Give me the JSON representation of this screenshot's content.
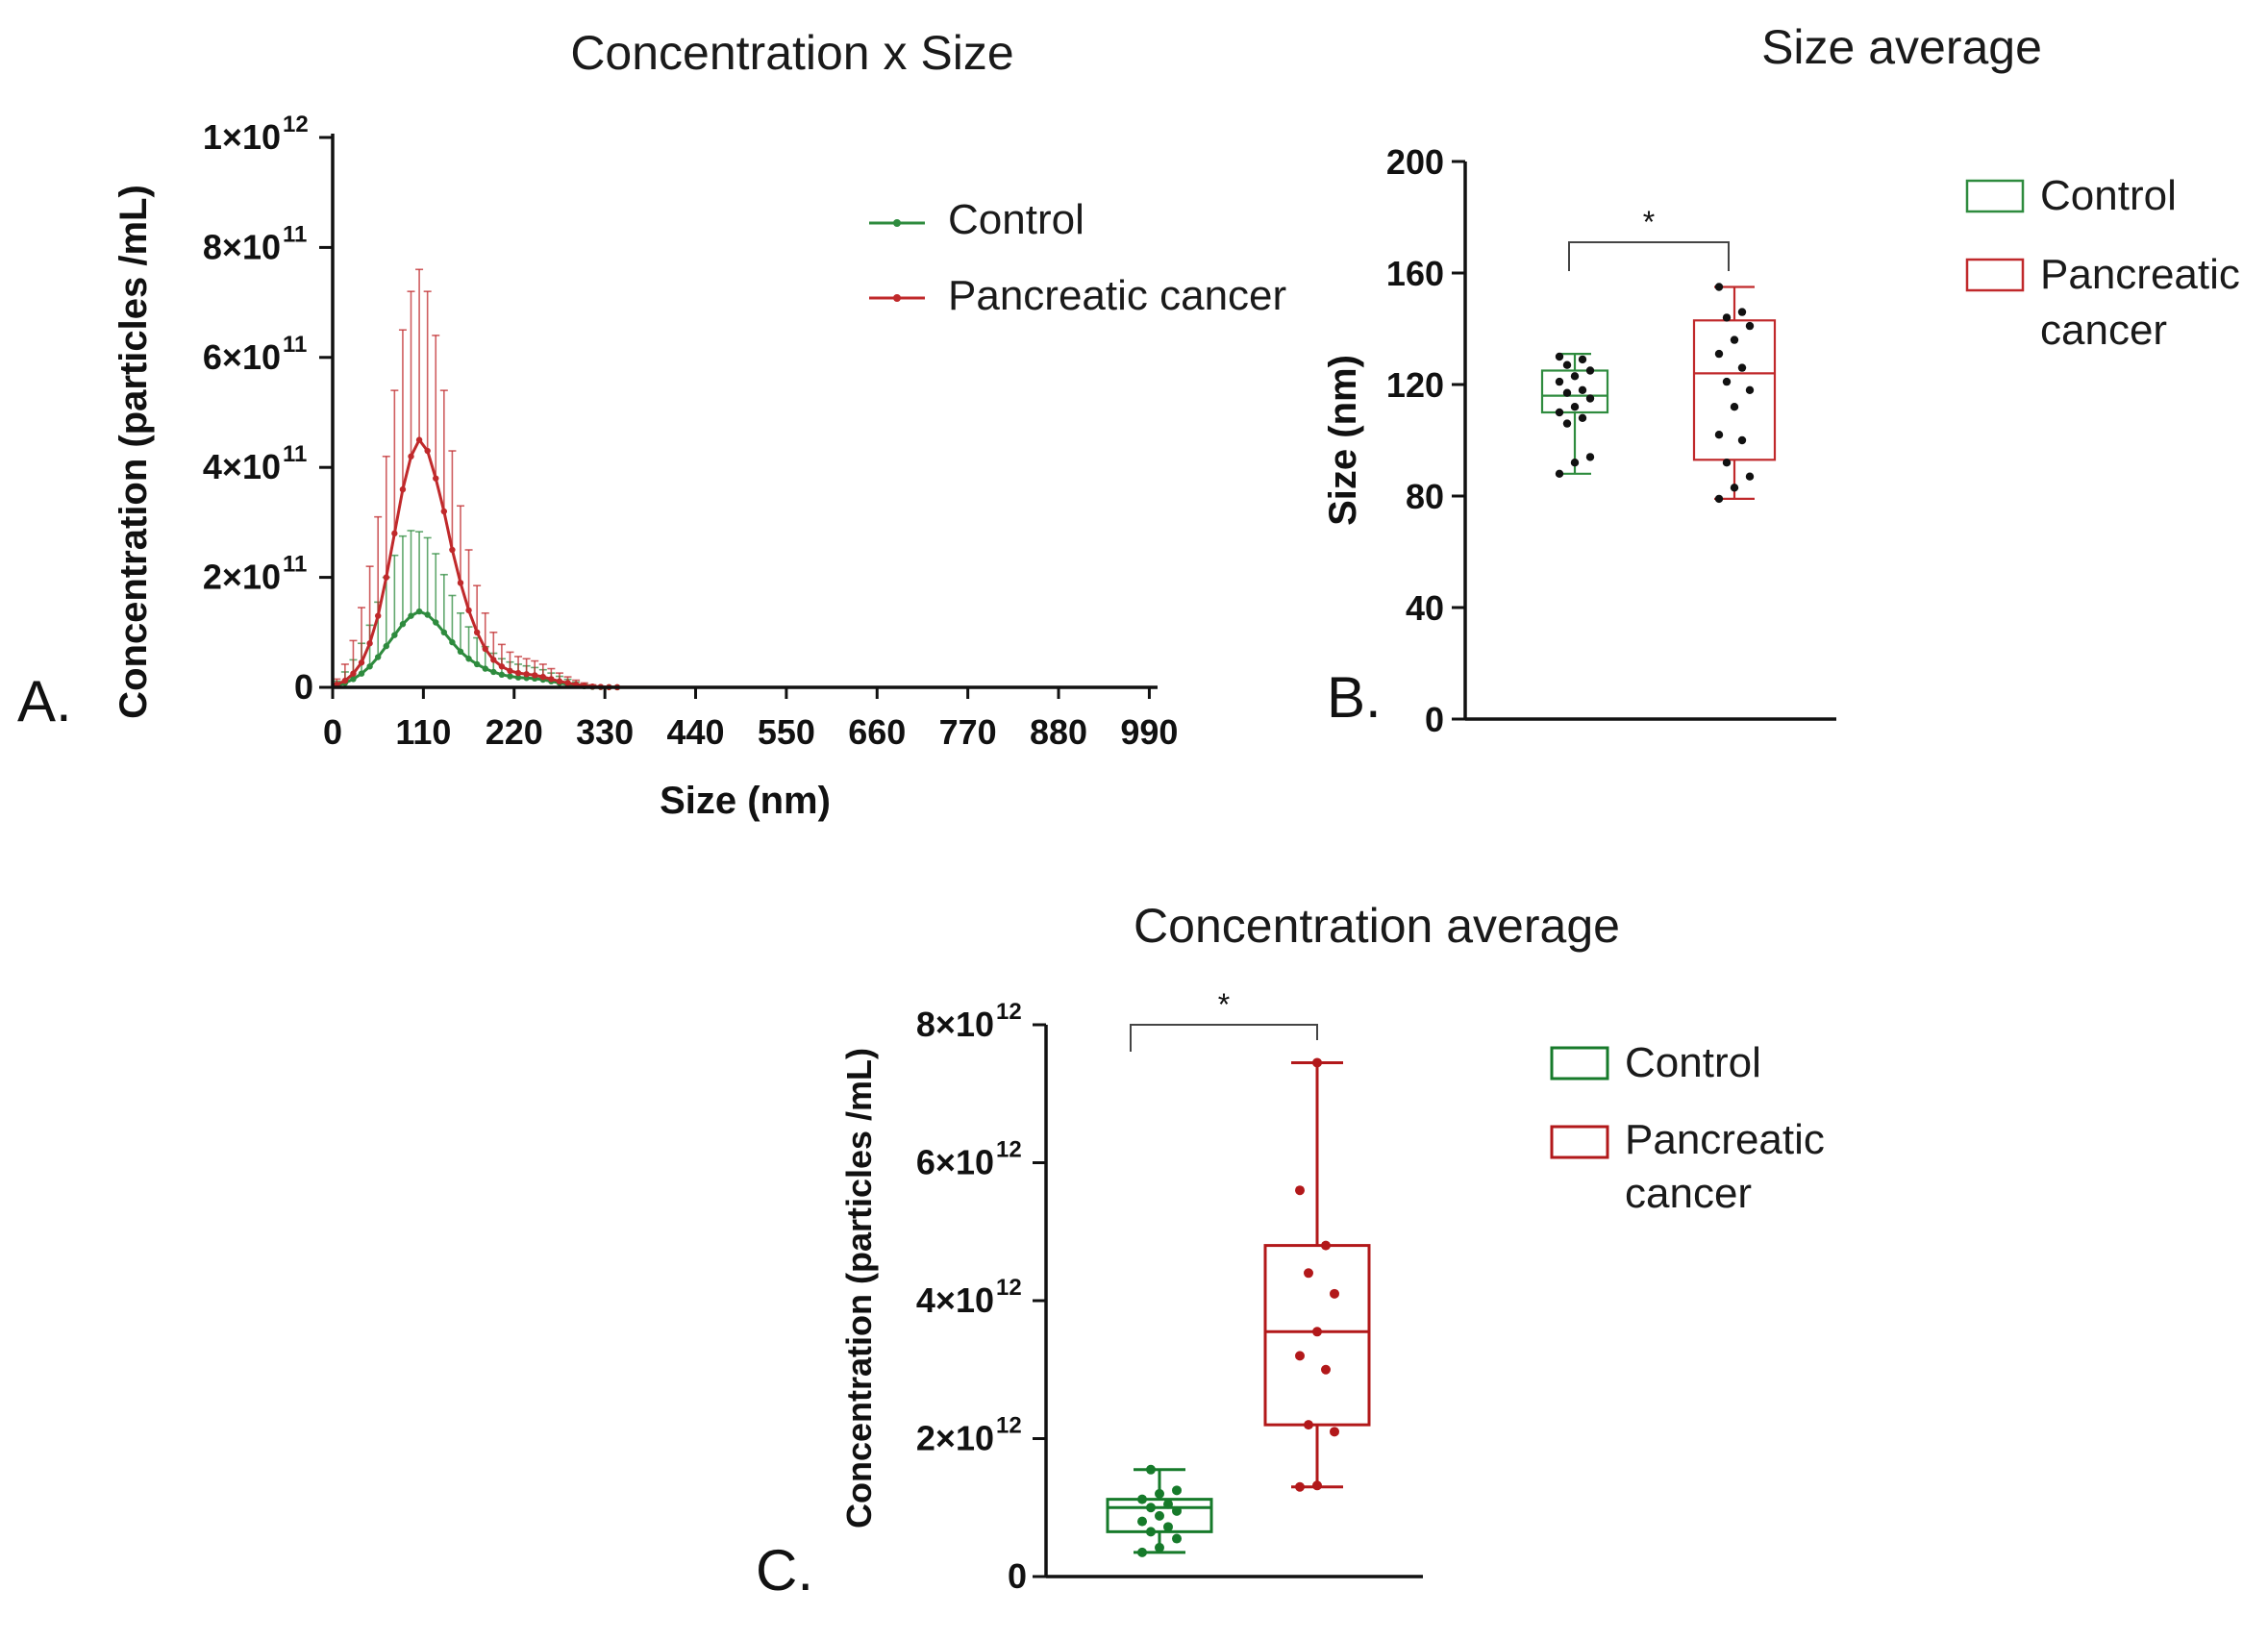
{
  "colors": {
    "control": "#2e8b3e",
    "cancer": "#c0292b",
    "control_dark": "#167a2a",
    "cancer_dark": "#b2181a",
    "axis": "#111111"
  },
  "chart_data": [
    {
      "panel": "A.",
      "type": "line",
      "title": "Concentration x Size",
      "xlabel": "Size (nm)",
      "ylabel": "Concentration  (particles /mL)",
      "xlim": [
        0,
        1000
      ],
      "ylim": [
        0,
        1000000000000.0
      ],
      "xticks": [
        "0",
        "110",
        "220",
        "330",
        "440",
        "550",
        "660",
        "770",
        "880",
        "990"
      ],
      "xtick_values": [
        0,
        110,
        220,
        330,
        440,
        550,
        660,
        770,
        880,
        990
      ],
      "yticks": [
        {
          "value": 0,
          "mantissa": "0",
          "exp": ""
        },
        {
          "value": 200000000000.0,
          "mantissa": "2×10",
          "exp": "11"
        },
        {
          "value": 400000000000.0,
          "mantissa": "4×10",
          "exp": "11"
        },
        {
          "value": 600000000000.0,
          "mantissa": "6×10",
          "exp": "11"
        },
        {
          "value": 800000000000.0,
          "mantissa": "8×10",
          "exp": "11"
        },
        {
          "value": 1000000000000.0,
          "mantissa": "1×10",
          "exp": "12"
        }
      ],
      "legend": [
        "Control",
        "Pancreatic cancer"
      ],
      "series": [
        {
          "name": "Control",
          "x": [
            5,
            15,
            25,
            35,
            45,
            55,
            65,
            75,
            85,
            95,
            105,
            115,
            125,
            135,
            145,
            155,
            165,
            175,
            185,
            195,
            205,
            215,
            225,
            235,
            245,
            255,
            265,
            275,
            285,
            295,
            305,
            315,
            325,
            335,
            345,
            400,
            500,
            600,
            700,
            800,
            900,
            995
          ],
          "values": [
            3000000000.0,
            8000000000.0,
            15000000000.0,
            25000000000.0,
            38000000000.0,
            55000000000.0,
            75000000000.0,
            95000000000.0,
            115000000000.0,
            130000000000.0,
            138000000000.0,
            132000000000.0,
            118000000000.0,
            100000000000.0,
            82000000000.0,
            65000000000.0,
            52000000000.0,
            42000000000.0,
            34000000000.0,
            28000000000.0,
            23000000000.0,
            20000000000.0,
            18000000000.0,
            17000000000.0,
            16000000000.0,
            14000000000.0,
            11000000000.0,
            8000000000.0,
            5500000000.0,
            3500000000.0,
            2000000000.0,
            1000000000.0,
            500000000.0,
            200000000.0,
            100000000.0,
            0,
            0,
            0,
            0,
            0,
            0,
            0
          ],
          "errors": [
            8000000000.0,
            20000000000.0,
            35000000000.0,
            55000000000.0,
            75000000000.0,
            100000000000.0,
            125000000000.0,
            145000000000.0,
            160000000000.0,
            155000000000.0,
            145000000000.0,
            140000000000.0,
            125000000000.0,
            105000000000.0,
            85000000000.0,
            70000000000.0,
            58000000000.0,
            48000000000.0,
            40000000000.0,
            34000000000.0,
            29000000000.0,
            26000000000.0,
            24000000000.0,
            22000000000.0,
            20000000000.0,
            18000000000.0,
            15000000000.0,
            12000000000.0,
            9000000000.0,
            6000000000.0,
            4000000000.0,
            2500000000.0,
            1000000000.0,
            500000000.0,
            200000000.0,
            0,
            0,
            0,
            0,
            0,
            0,
            0
          ]
        },
        {
          "name": "Pancreatic cancer",
          "x": [
            5,
            15,
            25,
            35,
            45,
            55,
            65,
            75,
            85,
            95,
            105,
            115,
            125,
            135,
            145,
            155,
            165,
            175,
            185,
            195,
            205,
            215,
            225,
            235,
            245,
            255,
            265,
            275,
            285,
            295,
            305,
            315,
            325,
            335,
            345,
            400,
            500,
            600,
            700,
            800,
            900,
            995
          ],
          "values": [
            5000000000.0,
            12000000000.0,
            25000000000.0,
            45000000000.0,
            80000000000.0,
            130000000000.0,
            200000000000.0,
            280000000000.0,
            360000000000.0,
            420000000000.0,
            450000000000.0,
            430000000000.0,
            380000000000.0,
            320000000000.0,
            250000000000.0,
            190000000000.0,
            140000000000.0,
            100000000000.0,
            70000000000.0,
            50000000000.0,
            38000000000.0,
            30000000000.0,
            26000000000.0,
            24000000000.0,
            22000000000.0,
            19000000000.0,
            15000000000.0,
            11000000000.0,
            8000000000.0,
            5000000000.0,
            3000000000.0,
            1500000000.0,
            800000000.0,
            400000000.0,
            200000000.0,
            0,
            0,
            0,
            0,
            0,
            0,
            0
          ],
          "errors": [
            10000000000.0,
            30000000000.0,
            60000000000.0,
            100000000000.0,
            140000000000.0,
            180000000000.0,
            220000000000.0,
            260000000000.0,
            290000000000.0,
            300000000000.0,
            310000000000.0,
            290000000000.0,
            260000000000.0,
            220000000000.0,
            180000000000.0,
            140000000000.0,
            110000000000.0,
            85000000000.0,
            65000000000.0,
            50000000000.0,
            40000000000.0,
            34000000000.0,
            30000000000.0,
            28000000000.0,
            26000000000.0,
            23000000000.0,
            19000000000.0,
            15000000000.0,
            11000000000.0,
            8000000000.0,
            5000000000.0,
            3000000000.0,
            1500000000.0,
            800000000.0,
            400000000.0,
            0,
            0,
            0,
            0,
            0,
            0,
            0
          ]
        }
      ]
    },
    {
      "panel": "B.",
      "type": "box",
      "title": "Size average",
      "xlabel": "",
      "ylabel": "Size (nm)",
      "ylim": [
        0,
        200
      ],
      "yticks": [
        "0",
        "40",
        "80",
        "120",
        "160",
        "200"
      ],
      "ytick_values": [
        0,
        40,
        80,
        120,
        160,
        200
      ],
      "legend": [
        "Control",
        "Pancreatic cancer"
      ],
      "significance": "*",
      "groups": [
        {
          "name": "Control",
          "min": 88,
          "q1": 110,
          "median": 116,
          "q3": 125,
          "max": 131,
          "points": [
            88,
            92,
            94,
            106,
            108,
            110,
            112,
            115,
            117,
            118,
            121,
            123,
            125,
            127,
            129,
            130
          ]
        },
        {
          "name": "Pancreatic cancer",
          "min": 79,
          "q1": 93,
          "median": 124,
          "q3": 143,
          "max": 155,
          "points": [
            79,
            83,
            87,
            92,
            100,
            102,
            112,
            118,
            121,
            126,
            131,
            136,
            141,
            144,
            146,
            155
          ]
        }
      ]
    },
    {
      "panel": "C.",
      "type": "box",
      "title": "Concentration average",
      "xlabel": "",
      "ylabel": "Concentration  (particles /mL)",
      "ylim": [
        0,
        8000000000000.0
      ],
      "yticks": [
        {
          "value": 0,
          "mantissa": "0",
          "exp": ""
        },
        {
          "value": 2000000000000.0,
          "mantissa": "2×10",
          "exp": "12"
        },
        {
          "value": 4000000000000.0,
          "mantissa": "4×10",
          "exp": "12"
        },
        {
          "value": 6000000000000.0,
          "mantissa": "6×10",
          "exp": "12"
        },
        {
          "value": 8000000000000.0,
          "mantissa": "8×10",
          "exp": "12"
        }
      ],
      "legend": [
        "Control",
        "Pancreatic cancer"
      ],
      "significance": "*",
      "groups": [
        {
          "name": "Control",
          "min": 350000000000.0,
          "q1": 650000000000.0,
          "median": 1000000000000.0,
          "q3": 1120000000000.0,
          "max": 1550000000000.0,
          "points": [
            350000000000.0,
            420000000000.0,
            550000000000.0,
            650000000000.0,
            720000000000.0,
            800000000000.0,
            880000000000.0,
            950000000000.0,
            1000000000000.0,
            1050000000000.0,
            1120000000000.0,
            1200000000000.0,
            1250000000000.0,
            1550000000000.0
          ]
        },
        {
          "name": "Pancreatic cancer",
          "min": 1300000000000.0,
          "q1": 2200000000000.0,
          "median": 3550000000000.0,
          "q3": 4800000000000.0,
          "max": 7450000000000.0,
          "points": [
            1300000000000.0,
            1320000000000.0,
            2100000000000.0,
            2200000000000.0,
            3000000000000.0,
            3200000000000.0,
            3550000000000.0,
            4100000000000.0,
            4400000000000.0,
            4800000000000.0,
            5600000000000.0,
            7450000000000.0
          ]
        }
      ]
    }
  ]
}
